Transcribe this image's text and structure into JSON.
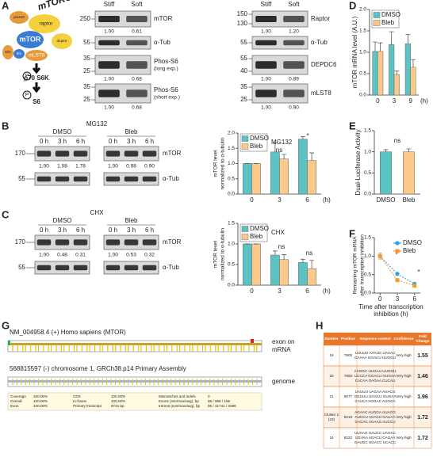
{
  "panel_labels": [
    "A",
    "B",
    "C",
    "D",
    "E",
    "F",
    "G",
    "H"
  ],
  "panel_a": {
    "diagram": {
      "complex": "mTORC1",
      "components": [
        "pras40",
        "raptor",
        "mTOR",
        "deptor",
        "tel2",
        "tti1",
        "mLST8"
      ],
      "phospho": "P",
      "kinase": "p70 S6K",
      "substrate": "S6"
    },
    "conditions": [
      "Stiff",
      "Soft"
    ],
    "blots_left": [
      {
        "protein": "mTOR",
        "mw": [
          "250"
        ],
        "quant": [
          "1.00",
          "0.61"
        ]
      },
      {
        "protein": "α-Tub",
        "mw": [
          "55"
        ]
      },
      {
        "protein": "Phos-S6",
        "note": "(long exp.)",
        "mw": [
          "35",
          "25"
        ],
        "quant": [
          "1.00",
          "0.68"
        ]
      },
      {
        "protein": "Phos-S6",
        "note": "(short exp.)",
        "mw": [
          "35",
          "25"
        ],
        "quant": [
          "1.00",
          "0.68"
        ]
      }
    ],
    "blots_right": [
      {
        "protein": "Raptor",
        "mw": [
          "150",
          "130"
        ],
        "quant": [
          "1.00",
          "1.20"
        ]
      },
      {
        "protein": "α-Tub",
        "mw": [
          "55"
        ]
      },
      {
        "protein": "DEPDC6",
        "mw": [
          "55",
          "40"
        ],
        "quant": [
          "1.00",
          "0.89"
        ]
      },
      {
        "protein": "mLST8",
        "mw": [
          "35",
          "25"
        ],
        "quant": [
          "1.00",
          "0.90"
        ]
      }
    ]
  },
  "panel_b": {
    "treatment": "MG132",
    "groups": [
      "DMSO",
      "Bleb"
    ],
    "times": [
      "0 h",
      "3 h",
      "6 h"
    ],
    "blots": [
      {
        "protein": "mTOR",
        "mw": "170",
        "quant": [
          [
            "1.00",
            "1.08",
            "1.78"
          ],
          [
            "1.00",
            "0.98",
            "0.90"
          ]
        ]
      },
      {
        "protein": "α-Tub",
        "mw": "55"
      }
    ]
  },
  "panel_c": {
    "treatment": "CHX",
    "groups": [
      "DMSO",
      "Bleb"
    ],
    "times": [
      "0 h",
      "3 h",
      "6 h"
    ],
    "blots": [
      {
        "protein": "mTOR",
        "mw": "170",
        "quant": [
          [
            "1.00",
            "0.48",
            "0.31"
          ],
          [
            "1.00",
            "0.53",
            "0.32"
          ]
        ]
      },
      {
        "protein": "α-Tub",
        "mw": "55"
      }
    ]
  },
  "panel_g": {
    "transcript": "NM_004958.4 (+) Homo sapiens (MTOR)",
    "transcript_label": [
      "exon on",
      "mRNA"
    ],
    "genomic": "568815597 (-) chromosome 1, GRCh38.p14 Primary Assembly",
    "genomic_label": "genome",
    "summary": [
      [
        "Coverage",
        "100.00%",
        "CDS",
        "100.00%",
        "Mismatches and indels",
        "0"
      ],
      [
        "Overall",
        "100.00%",
        "In-frame",
        "100.00%",
        "Exons (min/max/avg), bp",
        "86 / 966 / 158"
      ],
      [
        "Exon",
        "100.00%",
        "Primary transcript",
        "8721 bp",
        "Introns (min/max/avg), bp",
        "86 / 31741 / 2585"
      ]
    ]
  },
  "panel_h": {
    "columns": [
      "Number",
      "Position",
      "Sequence context",
      "Confidence",
      [
        "Fold",
        "Change"
      ]
    ],
    "rows": [
      [
        "19",
        "7900",
        [
          "UUUUG AAAUC UAAAU",
          "GAAAA GGACU UUGGU"
        ],
        "Very high",
        "1.55"
      ],
      [
        "20",
        "7993",
        [
          "AAGGC UUGAU UUGGU",
          "UCCCA GGACU GUGAA",
          "CACAA GAGAA CUCAU"
        ],
        "Very high",
        "1.46"
      ],
      [
        "21",
        "8077",
        [
          "UAUUU UAGAA AUACG",
          "GGUUU UGACU GUGAA",
          "CAUCA AGGAC AUGGA"
        ],
        "Very high",
        "1.96"
      ],
      [
        [
          "Cluster 1",
          "(23)"
        ],
        "8213",
        [
          "AGAAC AUGGA UUAGG",
          "AUCCU AGACU GAUAA",
          "GACAC AGAAG AUCCU"
        ],
        "Very high",
        "1.72"
      ],
      [
        "24",
        "8222",
        [
          "UUAAG GAUCC UAGAC",
          "UGUAA AGACU CAGAA",
          "GAUGC UGACC UCACC"
        ],
        "Very high",
        "1.72"
      ]
    ]
  },
  "chart_data": [
    {
      "type": "bar",
      "ylabel": [
        "mTOR level",
        "normalized to α-tubulin"
      ],
      "xlabel": "(h)",
      "categories": [
        "0",
        "3",
        "6"
      ],
      "series": [
        {
          "name": "DMSO",
          "color": "#5cc3c4",
          "values": [
            1.0,
            1.38,
            1.8
          ],
          "errors": [
            0,
            0.3,
            0.08
          ]
        },
        {
          "name": "Bleb",
          "color": "#fcc98c",
          "values": [
            1.0,
            1.15,
            1.1
          ],
          "errors": [
            0,
            0.15,
            0.25
          ]
        }
      ],
      "ylim": [
        0,
        2
      ],
      "yticks": [
        {
          "value": 0,
          "label": "0.0"
        },
        {
          "value": 0.5,
          "label": "0.5"
        },
        {
          "value": 1,
          "label": "1.0"
        },
        {
          "value": 1.5,
          "label": "1.5"
        },
        {
          "value": 2,
          "label": "2.0"
        }
      ],
      "legend": "upper left",
      "annotations": [
        "MG132",
        "ns",
        "*"
      ]
    },
    {
      "type": "bar",
      "ylabel": [
        "mTOR level",
        "normalized to α-tubulin"
      ],
      "xlabel": "(h)",
      "categories": [
        "0",
        "3",
        "6"
      ],
      "series": [
        {
          "name": "DMSO",
          "color": "#5cc3c4",
          "values": [
            1.0,
            0.73,
            0.55
          ],
          "errors": [
            0,
            0.1,
            0.08
          ]
        },
        {
          "name": "Bleb",
          "color": "#fcc98c",
          "values": [
            1.0,
            0.62,
            0.4
          ],
          "errors": [
            0,
            0.12,
            0.2
          ]
        }
      ],
      "ylim": [
        0,
        1.5
      ],
      "yticks": [
        {
          "value": 0,
          "label": "0.0"
        },
        {
          "value": 0.5,
          "label": "0.5"
        },
        {
          "value": 1,
          "label": "1.0"
        },
        {
          "value": 1.5,
          "label": "1.5"
        }
      ],
      "legend": "upper left",
      "annotations": [
        "CHX",
        "ns",
        "ns"
      ]
    },
    {
      "type": "bar",
      "ylabel": [
        "mTOR mRNA level (A.U.)"
      ],
      "xlabel": "(h)",
      "categories": [
        "0",
        "3",
        "9"
      ],
      "series": [
        {
          "name": "DMSO",
          "color": "#5cc3c4",
          "values": [
            1.02,
            1.18,
            1.2
          ],
          "errors": [
            0.22,
            0.3,
            0.22
          ]
        },
        {
          "name": "Bleb",
          "color": "#fcc98c",
          "values": [
            1.02,
            0.48,
            0.65
          ],
          "errors": [
            0.2,
            0.08,
            0.18
          ]
        }
      ],
      "ylim": [
        0,
        2
      ],
      "yticks": [
        {
          "value": 0,
          "label": "0.0"
        },
        {
          "value": 0.5,
          "label": "0.5"
        },
        {
          "value": 1,
          "label": "1.0"
        },
        {
          "value": 1.5,
          "label": "1.5"
        },
        {
          "value": 2,
          "label": "2.0"
        }
      ],
      "legend": "upper left"
    },
    {
      "type": "bar",
      "ylabel": [
        "Dual-Luciferase Activity"
      ],
      "categories": [
        "DMSO",
        "Bleb"
      ],
      "values": [
        1.0,
        1.0
      ],
      "errors": [
        0.05,
        0.07
      ],
      "colors": [
        "#5cc3c4",
        "#fcc98c"
      ],
      "ylim": [
        0,
        1.5
      ],
      "yticks": [
        {
          "value": 0,
          "label": "0.0"
        },
        {
          "value": 0.5,
          "label": "0.5"
        },
        {
          "value": 1,
          "label": "1.0"
        },
        {
          "value": 1.5,
          "label": "1.5"
        }
      ],
      "annotations": [
        "ns"
      ]
    },
    {
      "type": "line",
      "ylabel": [
        "Remaining mTOR mRNA",
        "after transcription inhibition"
      ],
      "xlabel": [
        "Time after transcription",
        "inhibition (h)"
      ],
      "x": [
        0,
        3,
        6
      ],
      "xlim": [
        -1,
        7
      ],
      "xticks": [
        0,
        3,
        6
      ],
      "series": [
        {
          "name": "DMSO",
          "color": "#2e9fe0",
          "marker": "circle",
          "values": [
            1.0,
            0.52,
            0.25
          ],
          "errors": [
            0.08,
            0.04,
            0.03
          ]
        },
        {
          "name": "Bleb",
          "color": "#f39a2d",
          "marker": "square",
          "values": [
            1.0,
            0.35,
            0.2
          ],
          "errors": [
            0.08,
            0.03,
            0.02
          ]
        }
      ],
      "ylim": [
        0,
        1.5
      ],
      "yticks": [
        {
          "value": 0,
          "label": "0.0"
        },
        {
          "value": 0.5,
          "label": "0.5"
        },
        {
          "value": 1,
          "label": "1.0"
        },
        {
          "value": 1.5,
          "label": "1.5"
        }
      ],
      "legend": "upper right",
      "annotations": [
        "*",
        "*"
      ]
    }
  ]
}
